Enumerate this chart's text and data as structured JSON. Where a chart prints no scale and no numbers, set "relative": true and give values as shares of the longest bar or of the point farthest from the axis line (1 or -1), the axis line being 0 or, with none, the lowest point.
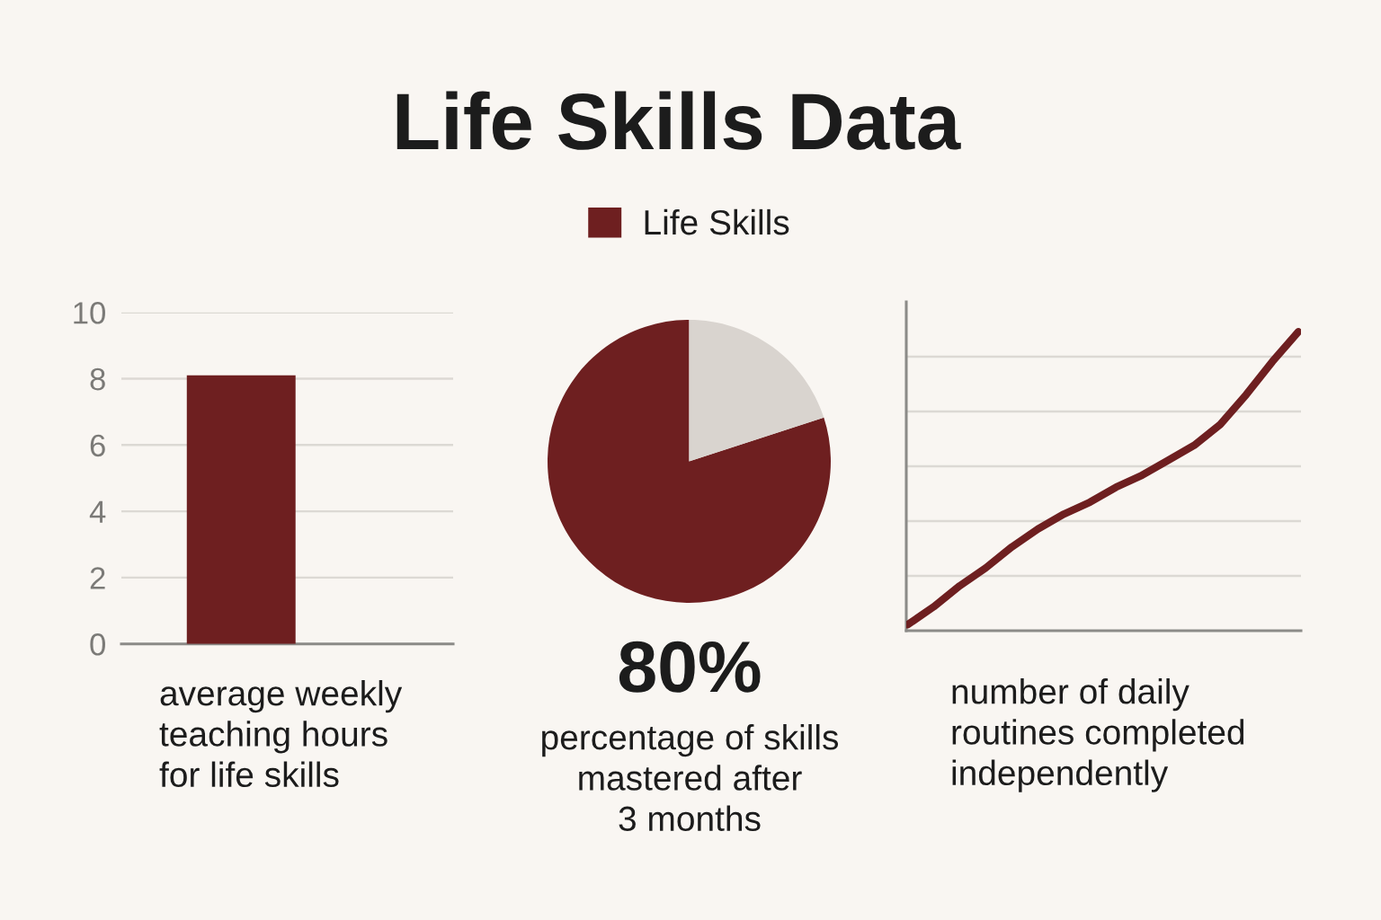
{
  "chart_data": [
    {
      "type": "bar",
      "xlabel": "average weekly\nteaching hours\nfor life skills",
      "categories": [
        null
      ],
      "series": [
        {
          "color": "#6e1f20",
          "values": [
            8.1
          ]
        }
      ],
      "ylim": [
        0,
        10
      ],
      "yticks": [
        0,
        2,
        4,
        6,
        8,
        10
      ],
      "grid": "y",
      "tick_labels": "y"
    },
    {
      "type": "pie",
      "title": "Life Skills Data",
      "xlabel": "percentage of skills\nmastered after\n3 months",
      "categories": [
        "Life Skills",
        null
      ],
      "values": [
        80,
        20
      ],
      "colors": [
        "#6e1f20",
        "#d9d4cf"
      ],
      "value_labels": [
        "80%",
        null
      ],
      "legend": "top"
    },
    {
      "type": "line",
      "xlabel": "number of daily\nroutines completed\nindependently",
      "relative": true,
      "categories": [
        null,
        null,
        null,
        null,
        null,
        null,
        null,
        null,
        null,
        null,
        null,
        null,
        null,
        null,
        null,
        null
      ],
      "series": [
        {
          "color": "#6e1f20",
          "values": [
            0.02,
            0.08,
            0.15,
            0.21,
            0.28,
            0.34,
            0.39,
            0.43,
            0.48,
            0.52,
            0.57,
            0.62,
            0.69,
            0.79,
            0.9,
            1
          ]
        }
      ],
      "grid": "y",
      "tick_labels": false,
      "marker": "none",
      "line_style": "solid"
    }
  ]
}
